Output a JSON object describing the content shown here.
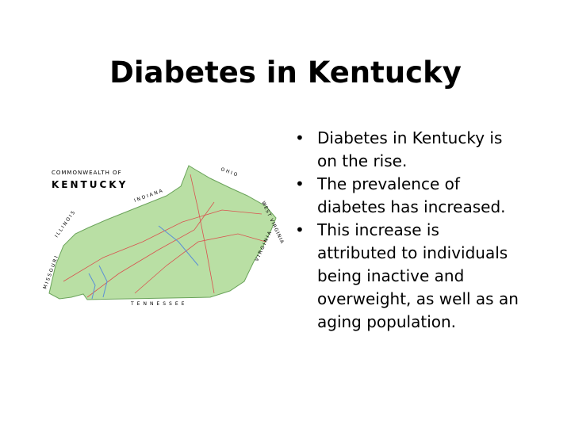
{
  "header": {
    "title": "Diabetes in Kentucky"
  },
  "bullets": [
    "Diabetes in Kentucky is on the rise.",
    "The prevalence of diabetes has increased.",
    "This increase is attributed to individuals being inactive and overweight, as well as an aging population."
  ],
  "map": {
    "heading": "COMMONWEALTH OF",
    "state": "KENTUCKY",
    "neighbors": [
      "OHIO",
      "INDIANA",
      "ILLINOIS",
      "MISSOURI",
      "WEST VIRGINIA",
      "VIRGINIA",
      "TENNESSEE"
    ]
  }
}
